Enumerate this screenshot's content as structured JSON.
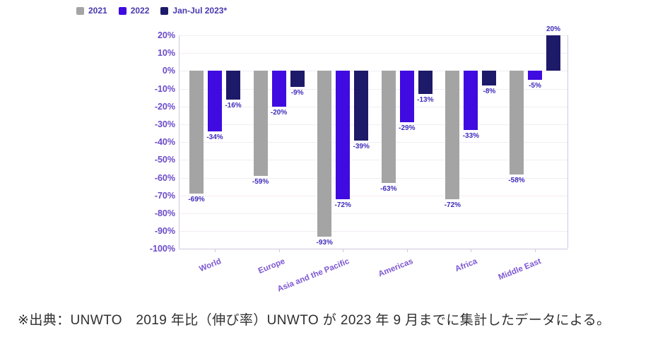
{
  "chart_data": {
    "type": "bar",
    "title": "",
    "xlabel": "",
    "ylabel": "",
    "categories": [
      "World",
      "Europe",
      "Asia and the Pacific",
      "Americas",
      "Africa",
      "Middle East"
    ],
    "series": [
      {
        "name": "2021",
        "color": "#a4a4a4",
        "values": [
          -69,
          -59,
          -93,
          -63,
          -72,
          -58
        ],
        "labels": [
          "-69%",
          "-59%",
          "-93%",
          "-63%",
          "-72%",
          "-58%"
        ]
      },
      {
        "name": "2022",
        "color": "#3f0be0",
        "values": [
          -34,
          -20,
          -72,
          -29,
          -33,
          -5
        ],
        "labels": [
          "-34%",
          "-20%",
          "-72%",
          "-29%",
          "-33%",
          "-5%"
        ]
      },
      {
        "name": "Jan-Jul 2023*",
        "color": "#1d1a69",
        "values": [
          -16,
          -9,
          -39,
          -13,
          -8,
          20
        ],
        "labels": [
          "-16%",
          "-9%",
          "-39%",
          "-13%",
          "-8%",
          "20%"
        ]
      }
    ],
    "ylim": [
      -100,
      20
    ],
    "yticks": [
      {
        "value": 20,
        "label": "20%"
      },
      {
        "value": 10,
        "label": "10%"
      },
      {
        "value": 0,
        "label": "0%"
      },
      {
        "value": -10,
        "label": "-10%"
      },
      {
        "value": -20,
        "label": "-20%"
      },
      {
        "value": -30,
        "label": "-30%"
      },
      {
        "value": -40,
        "label": "-40%"
      },
      {
        "value": -50,
        "label": "-50%"
      },
      {
        "value": -60,
        "label": "-60%"
      },
      {
        "value": -70,
        "label": "-70%"
      },
      {
        "value": -80,
        "label": "-80%"
      },
      {
        "value": -90,
        "label": "-90%"
      },
      {
        "value": -100,
        "label": "-100%"
      }
    ],
    "grid": true,
    "legend_position": "top-left"
  },
  "colors": {
    "grid_line": "#f3ecf3",
    "axis_line": "#cfc8e0",
    "tick_label": "#6a4ac9",
    "category_label": "#7e58d2",
    "data_label": "#3c2abc",
    "legend_text": "#4638b0"
  },
  "footnote": "※出典：UNWTO　2019 年比（伸び率）UNWTO が 2023 年 9 月までに集計したデータによる。"
}
